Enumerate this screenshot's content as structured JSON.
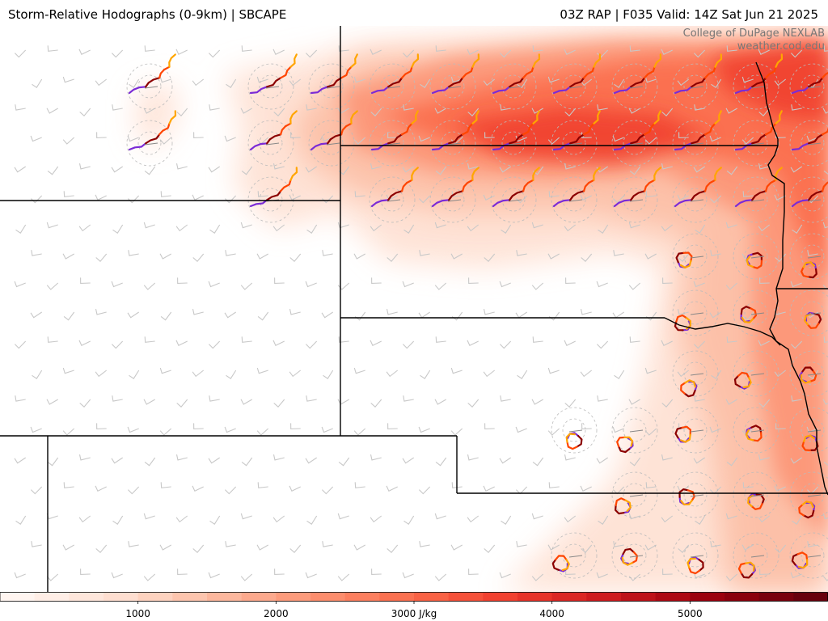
{
  "header": {
    "title": "Storm-Relative Hodographs (0-9km) | SBCAPE",
    "run_info": "03Z RAP | F035 Valid: 14Z Sat Jun 21 2025"
  },
  "credits": {
    "line1": "College of DuPage NEXLAB",
    "line2": "weather.cod.edu"
  },
  "colorbar": {
    "min": 0,
    "max": 6000,
    "ticks": [
      {
        "value": 1000,
        "label": "1000"
      },
      {
        "value": 2000,
        "label": "2000"
      },
      {
        "value": 3000,
        "label": "3000 J/kg"
      },
      {
        "value": 4000,
        "label": "4000"
      },
      {
        "value": 5000,
        "label": "5000"
      }
    ],
    "colors": [
      "#fff5f0",
      "#fee0d2",
      "#fcbba1",
      "#fc9272",
      "#fb6a4a",
      "#ef3b2c",
      "#cb181d",
      "#99000d",
      "#67000d"
    ]
  },
  "hodograph_colors": {
    "0-3km": "#7b2bd6",
    "3-6km": "#8b0000",
    "6-9km": "#ff4500",
    "9km": "#ffa500"
  },
  "barb_color": "#c8c8c8",
  "border_color": "#000000"
}
